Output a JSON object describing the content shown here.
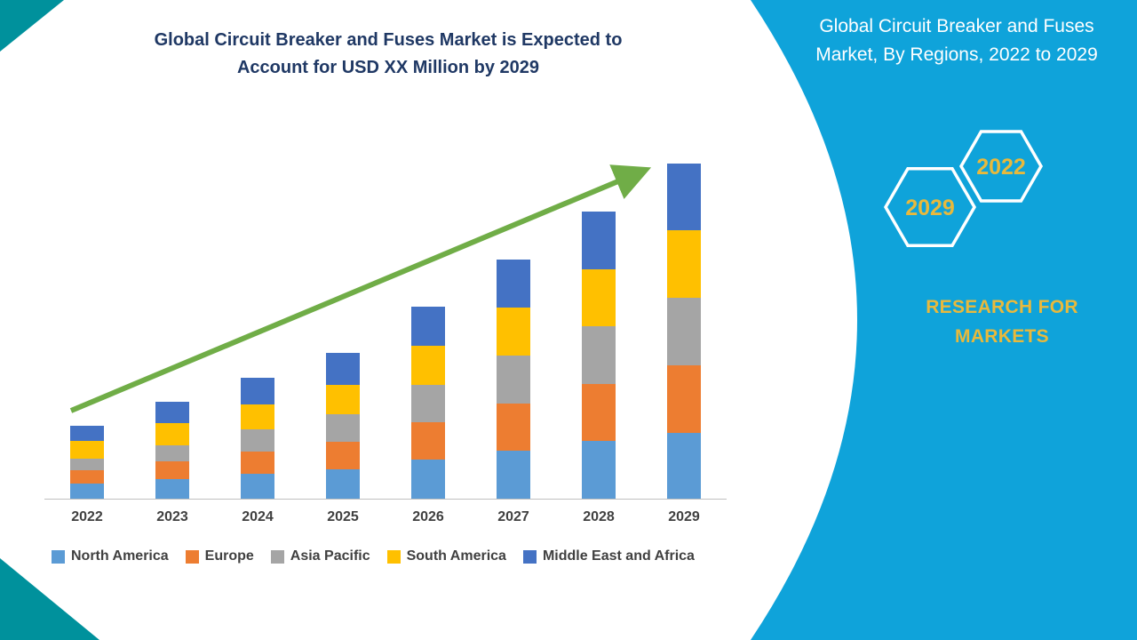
{
  "main_chart": {
    "title": "Global Circuit Breaker and Fuses Market is Expected to Account for USD XX Million by 2029"
  },
  "side_panel": {
    "title": "Global Circuit Breaker and Fuses Market, By Regions, 2022 to 2029",
    "hexagon_front_label": "2029",
    "hexagon_back_label": "2022",
    "brand": "RESEARCH FOR MARKETS"
  },
  "colors": {
    "accent_teal": "#00919C",
    "panel_cyan": "#0FA3DA",
    "title_navy": "#1F3864",
    "gold": "#E8B93C",
    "arrow_green": "#70AD47",
    "axis_text": "#404040"
  },
  "chart_data": {
    "type": "bar",
    "stacked": true,
    "title": "Global Circuit Breaker and Fuses Market is Expected to Account for USD XX Million by 2029",
    "categories": [
      "2022",
      "2023",
      "2024",
      "2025",
      "2026",
      "2027",
      "2028",
      "2029"
    ],
    "series": [
      {
        "name": "North America",
        "color": "#5B9BD5",
        "values": [
          17,
          22,
          28,
          33,
          44,
          54,
          65,
          74
        ]
      },
      {
        "name": "Europe",
        "color": "#ED7D31",
        "values": [
          15,
          20,
          25,
          31,
          42,
          53,
          64,
          76
        ]
      },
      {
        "name": "Asia Pacific",
        "color": "#A5A5A5",
        "values": [
          13,
          18,
          25,
          31,
          42,
          54,
          65,
          76
        ]
      },
      {
        "name": "South America",
        "color": "#FFC000",
        "values": [
          20,
          25,
          28,
          33,
          44,
          54,
          64,
          76
        ]
      },
      {
        "name": "Middle East and Africa",
        "color": "#4472C4",
        "values": [
          17,
          24,
          30,
          36,
          44,
          54,
          65,
          75
        ]
      }
    ],
    "xlabel": "",
    "ylabel": "",
    "ylim": [
      0,
      386
    ],
    "grid": false,
    "y_axis_visible": false,
    "legend_position": "bottom",
    "trend_arrow": {
      "from_category": "2022",
      "to_category": "2029",
      "color": "#70AD47"
    }
  }
}
